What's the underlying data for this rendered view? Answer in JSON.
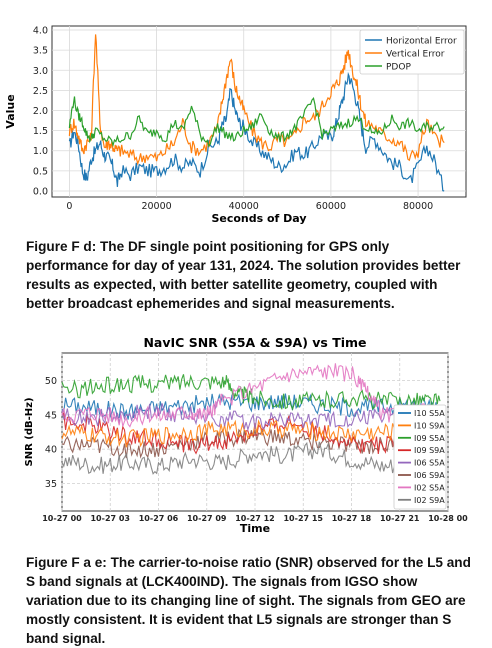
{
  "chart_data": [
    {
      "type": "line",
      "title": "",
      "xlabel": "Seconds of Day",
      "ylabel": "Value",
      "xlim": [
        -4000,
        91000
      ],
      "ylim": [
        -0.15,
        4.1
      ],
      "xticks": [
        0,
        20000,
        40000,
        60000,
        80000
      ],
      "xtick_labels": [
        "0",
        "20000",
        "40000",
        "60000",
        "80000"
      ],
      "yticks": [
        0.0,
        0.5,
        1.0,
        1.5,
        2.0,
        2.5,
        3.0,
        3.5,
        4.0
      ],
      "ytick_labels": [
        "0.0",
        "0.5",
        "1.0",
        "1.5",
        "2.0",
        "2.5",
        "3.0",
        "3.5",
        "4.0"
      ],
      "grid": true,
      "legend": "top-right",
      "series": [
        {
          "name": "Horizontal Error",
          "color": "#1f77b4",
          "x": [
            0,
            1000,
            2000,
            3000,
            4000,
            5000,
            6000,
            7000,
            8000,
            9000,
            10000,
            11000,
            12000,
            14000,
            16000,
            18000,
            20000,
            22000,
            24000,
            26000,
            28000,
            30000,
            32000,
            34000,
            35000,
            36000,
            37000,
            38000,
            39000,
            40000,
            42000,
            44000,
            46000,
            48000,
            50000,
            52000,
            54000,
            56000,
            58000,
            60000,
            61000,
            62000,
            63000,
            64000,
            65000,
            66000,
            67000,
            68000,
            70000,
            72000,
            74000,
            76000,
            78000,
            80000,
            82000,
            84000,
            86000
          ],
          "values": [
            1.1,
            1.5,
            1.2,
            0.5,
            0.3,
            0.8,
            1.0,
            1.2,
            0.9,
            0.8,
            0.6,
            0.2,
            0.5,
            0.4,
            0.6,
            0.5,
            0.5,
            0.6,
            0.8,
            0.6,
            0.7,
            0.5,
            1.1,
            1.2,
            1.6,
            1.8,
            2.5,
            2.0,
            1.7,
            1.6,
            1.2,
            1.0,
            0.8,
            0.6,
            0.7,
            1.0,
            0.9,
            1.1,
            1.4,
            1.3,
            1.6,
            2.0,
            2.4,
            2.9,
            2.6,
            2.2,
            1.6,
            1.1,
            1.3,
            1.0,
            0.7,
            0.6,
            0.2,
            0.6,
            1.1,
            0.7,
            0.0
          ]
        },
        {
          "name": "Vertical Error",
          "color": "#ff7f0e",
          "x": [
            0,
            1000,
            2000,
            3000,
            4000,
            5000,
            6000,
            7000,
            8000,
            9000,
            10000,
            11000,
            12000,
            14000,
            16000,
            18000,
            20000,
            22000,
            24000,
            26000,
            28000,
            30000,
            32000,
            34000,
            35000,
            36000,
            37000,
            38000,
            39000,
            40000,
            42000,
            44000,
            46000,
            48000,
            50000,
            52000,
            54000,
            56000,
            58000,
            60000,
            61000,
            62000,
            63000,
            64000,
            65000,
            66000,
            67000,
            68000,
            70000,
            72000,
            74000,
            76000,
            78000,
            80000,
            82000,
            84000,
            86000
          ],
          "values": [
            1.5,
            1.7,
            1.4,
            1.0,
            1.2,
            1.3,
            4.0,
            1.7,
            1.1,
            1.2,
            1.1,
            1.0,
            1.0,
            0.9,
            0.8,
            0.9,
            0.8,
            1.0,
            1.2,
            1.7,
            1.1,
            1.0,
            1.2,
            1.6,
            2.2,
            2.8,
            3.3,
            2.6,
            2.3,
            2.0,
            1.5,
            1.2,
            1.1,
            1.3,
            1.2,
            1.4,
            1.8,
            1.8,
            2.1,
            2.5,
            2.6,
            2.8,
            3.1,
            3.5,
            3.0,
            2.6,
            2.1,
            1.7,
            1.6,
            1.4,
            1.3,
            1.2,
            0.8,
            1.0,
            1.7,
            1.3,
            1.2
          ]
        },
        {
          "name": "PDOP",
          "color": "#2ca02c",
          "x": [
            0,
            1000,
            2000,
            3000,
            4000,
            5000,
            6000,
            8000,
            10000,
            12000,
            14000,
            16000,
            18000,
            20000,
            22000,
            24000,
            26000,
            28000,
            30000,
            32000,
            34000,
            36000,
            38000,
            40000,
            42000,
            44000,
            46000,
            48000,
            50000,
            52000,
            54000,
            56000,
            58000,
            60000,
            62000,
            64000,
            66000,
            68000,
            70000,
            72000,
            74000,
            76000,
            78000,
            80000,
            82000,
            84000,
            86000
          ],
          "values": [
            1.6,
            2.3,
            1.9,
            1.7,
            1.4,
            1.3,
            1.5,
            1.3,
            1.2,
            1.3,
            1.4,
            1.8,
            1.4,
            1.5,
            1.3,
            1.7,
            1.5,
            2.1,
            1.4,
            1.2,
            1.6,
            1.4,
            1.3,
            1.5,
            1.6,
            1.9,
            1.5,
            1.3,
            1.4,
            1.6,
            1.9,
            2.3,
            1.4,
            1.5,
            1.6,
            1.7,
            1.8,
            1.6,
            1.4,
            1.5,
            1.8,
            1.6,
            1.7,
            1.5,
            1.6,
            1.6,
            1.6
          ]
        }
      ]
    },
    {
      "type": "line",
      "title": "NavIC SNR (S5A & S9A) vs Time",
      "xlabel": "Time",
      "ylabel": "SNR (dB-Hz)",
      "xlim": [
        0,
        24
      ],
      "ylim": [
        31,
        54
      ],
      "xtick_labels": [
        "10-27 00",
        "10-27 03",
        "10-27 06",
        "10-27 09",
        "10-27 12",
        "10-27 15",
        "10-27 18",
        "10-27 21",
        "10-28 00"
      ],
      "yticks": [
        35,
        40,
        45,
        50
      ],
      "ytick_labels": [
        "35",
        "40",
        "45",
        "50"
      ],
      "grid": true,
      "legend": "right",
      "series": [
        {
          "name": "I10 S5A",
          "color": "#1f77b4",
          "x": [
            0,
            2,
            4,
            6,
            8,
            10,
            12,
            14,
            16,
            18,
            20,
            22,
            23.5
          ],
          "values": [
            46.5,
            46,
            45.5,
            46,
            46.5,
            47,
            46.8,
            47,
            46.5,
            46,
            46.2,
            46.5,
            46.3
          ]
        },
        {
          "name": "I10 S9A",
          "color": "#ff7f0e",
          "x": [
            0,
            2,
            4,
            6,
            8,
            10,
            12,
            14,
            16,
            18,
            20,
            22,
            23.5
          ],
          "values": [
            42.5,
            42,
            41.5,
            42,
            42.5,
            43,
            42.8,
            43,
            42.5,
            42.2,
            42.5,
            42.8,
            42.6
          ]
        },
        {
          "name": "I09 S5A",
          "color": "#2ca02c",
          "x": [
            0,
            2,
            4,
            6,
            8,
            10,
            11,
            12,
            14,
            16,
            18,
            20,
            22,
            23.5
          ],
          "values": [
            48.5,
            49,
            49.5,
            49.5,
            50,
            50,
            48,
            47.5,
            47,
            47,
            47.5,
            47,
            47.2,
            47
          ]
        },
        {
          "name": "I09 S9A",
          "color": "#d62728",
          "x": [
            0,
            2,
            4,
            6,
            8,
            10,
            12,
            14,
            16,
            18,
            20,
            22,
            23.5
          ],
          "values": [
            44,
            43.5,
            42,
            41.5,
            40.5,
            41,
            42.5,
            44,
            42.5,
            41,
            40.5,
            41,
            41
          ]
        },
        {
          "name": "I06 S5A",
          "color": "#9467bd",
          "x": [
            0,
            2,
            4,
            6,
            8,
            10,
            12,
            14,
            16,
            18,
            20,
            22,
            23.5
          ],
          "values": [
            45,
            44.5,
            45,
            45.5,
            45,
            44.5,
            44,
            44.5,
            44,
            44.5,
            45,
            45.5,
            45.2
          ]
        },
        {
          "name": "I06 S9A",
          "color": "#8c564b",
          "x": [
            0,
            2,
            4,
            6,
            8,
            10,
            12,
            14,
            16,
            18,
            20,
            22,
            23.5
          ],
          "values": [
            40.5,
            40.5,
            40,
            40,
            41,
            41.5,
            42,
            41.5,
            41,
            40.5,
            40.5,
            41,
            40.8
          ]
        },
        {
          "name": "I02 S5A",
          "color": "#e377c2",
          "x": [
            0,
            2,
            4,
            6,
            8,
            9,
            10,
            12,
            14,
            16,
            18,
            19,
            20,
            22,
            23.5
          ],
          "values": [
            45,
            45.5,
            44.5,
            45,
            45.5,
            45,
            47,
            49,
            51,
            51.5,
            51,
            48,
            45,
            45.5,
            45
          ]
        },
        {
          "name": "I02 S9A",
          "color": "#7f7f7f",
          "x": [
            0,
            2,
            4,
            6,
            8,
            10,
            12,
            14,
            16,
            18,
            20,
            22,
            23.5
          ],
          "values": [
            38.5,
            37.5,
            38,
            37.5,
            38.5,
            38,
            39.5,
            39,
            40,
            38.5,
            37.5,
            38,
            37.5
          ]
        }
      ]
    }
  ],
  "captions": {
    "fig_d": "Figure F d: The DF single point positioning for GPS only performance for day of year 131, 2024. The solution provides better results as expected, with better satellite geometry, coupled with better broadcast ephemerides and signal measurements.",
    "fig_e": "Figure F a e: The carrier-to-noise ratio (SNR) observed for the L5 and S band signals at (LCK400IND). The signals from IGSO show variation due to its changing line of sight. The signals from GEO are mostly consistent. It is evident that L5 signals are stronger than S band signal."
  }
}
